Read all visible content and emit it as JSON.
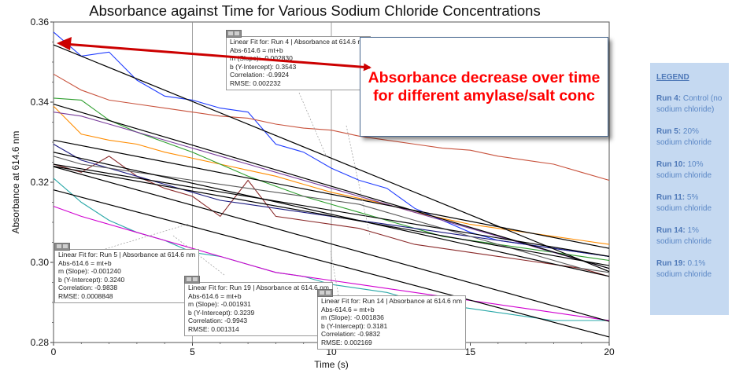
{
  "chart_data": {
    "type": "line",
    "title": "Absorbance against Time for Various Sodium Chloride Concentrations",
    "xlabel": "Time (s)",
    "ylabel": "Absorbance at 614.6 nm",
    "xlim": [
      0,
      20
    ],
    "ylim": [
      0.28,
      0.36
    ],
    "x_ticks": [
      "0",
      "5",
      "10",
      "15",
      "20"
    ],
    "y_ticks": [
      "0.28",
      "0.30",
      "0.32",
      "0.34",
      "0.36"
    ],
    "grid": "vertical lines at x = 5 and x = 10",
    "series": [
      {
        "color": "#1f3cff",
        "x": [
          0,
          1,
          2,
          3,
          4,
          5,
          6,
          7,
          8,
          9,
          10,
          11,
          12,
          13,
          14,
          15,
          16,
          17,
          18,
          19,
          20
        ],
        "values": [
          0.3575,
          0.3515,
          0.3525,
          0.3455,
          0.3415,
          0.3405,
          0.3385,
          0.3375,
          0.3295,
          0.3275,
          0.3235,
          0.3205,
          0.3185,
          0.3135,
          0.3105,
          0.3075,
          0.3055,
          0.3045,
          0.3035,
          0.3025,
          0.3015
        ]
      },
      {
        "color": "#c8523c",
        "x": [
          0,
          1,
          2,
          3,
          4,
          5,
          6,
          7,
          8,
          9,
          10,
          11,
          12,
          13,
          14,
          15,
          16,
          17,
          18,
          19,
          20
        ],
        "values": [
          0.347,
          0.343,
          0.3405,
          0.3395,
          0.3385,
          0.3375,
          0.3365,
          0.336,
          0.3345,
          0.3335,
          0.333,
          0.3315,
          0.3305,
          0.3295,
          0.3285,
          0.328,
          0.3265,
          0.3255,
          0.3245,
          0.3225,
          0.3205
        ]
      },
      {
        "color": "#ff8c00",
        "x": [
          0,
          1,
          2,
          3,
          4,
          5,
          6,
          7,
          8,
          9,
          10,
          11,
          12,
          13,
          14,
          15,
          16,
          17,
          18,
          19,
          20
        ],
        "values": [
          0.339,
          0.332,
          0.3305,
          0.3295,
          0.3275,
          0.326,
          0.3245,
          0.323,
          0.3215,
          0.3195,
          0.3175,
          0.316,
          0.3145,
          0.3125,
          0.311,
          0.3095,
          0.3085,
          0.3075,
          0.3065,
          0.3055,
          0.3045
        ]
      },
      {
        "color": "#2e9e2e",
        "x": [
          0,
          1,
          2,
          3,
          4,
          5,
          6,
          7,
          8,
          9,
          10,
          11,
          12,
          13,
          14,
          15,
          16,
          17,
          18,
          19,
          20
        ],
        "values": [
          0.341,
          0.3405,
          0.3355,
          0.3325,
          0.33,
          0.3275,
          0.3245,
          0.3215,
          0.319,
          0.3165,
          0.3145,
          0.3125,
          0.3105,
          0.3085,
          0.3065,
          0.3055,
          0.3045,
          0.3035,
          0.3025,
          0.3015,
          0.3005
        ]
      },
      {
        "color": "#8a2a2a",
        "x": [
          0,
          1,
          2,
          3,
          4,
          5,
          6,
          7,
          8,
          9,
          10,
          11,
          12,
          13,
          14,
          15,
          16,
          17,
          18,
          19,
          20
        ],
        "values": [
          0.3245,
          0.3225,
          0.3265,
          0.3215,
          0.3185,
          0.3165,
          0.3115,
          0.3205,
          0.3115,
          0.3105,
          0.3095,
          0.3085,
          0.3065,
          0.3045,
          0.3035,
          0.3025,
          0.3015,
          0.3005,
          0.2995,
          0.2985,
          0.2965
        ]
      },
      {
        "color": "#2aa8a8",
        "x": [
          0,
          1,
          2,
          3,
          4,
          5,
          6,
          7,
          8,
          9,
          10,
          11,
          12,
          13,
          14,
          15,
          16,
          17,
          18,
          19,
          20
        ],
        "values": [
          0.321,
          0.315,
          0.3105,
          0.3075,
          0.3055,
          0.3025,
          0.3015,
          0.2995,
          0.2975,
          0.2965,
          0.2945,
          0.2935,
          0.2925,
          0.2905,
          0.2895,
          0.2885,
          0.2875,
          0.2865,
          0.2855,
          0.2855,
          0.2855
        ]
      },
      {
        "color": "#d000d0",
        "x": [
          0,
          1,
          2,
          3,
          4,
          5,
          6,
          7,
          8,
          9,
          10,
          11,
          12,
          13,
          14,
          15,
          16,
          17,
          18,
          19,
          20
        ],
        "values": [
          0.314,
          0.3115,
          0.3095,
          0.3075,
          0.3055,
          0.3035,
          0.3015,
          0.2995,
          0.2975,
          0.2965,
          0.2955,
          0.2945,
          0.2935,
          0.2925,
          0.2915,
          0.2905,
          0.2895,
          0.2885,
          0.2875,
          0.2865,
          0.2855
        ]
      },
      {
        "color": "#7b3f9e",
        "x": [
          0,
          1,
          2,
          3,
          4,
          5,
          6,
          7,
          8,
          9,
          10,
          11,
          12,
          13,
          14,
          15,
          16,
          17,
          18,
          19,
          20
        ],
        "values": [
          0.3375,
          0.3365,
          0.3345,
          0.3325,
          0.3305,
          0.3285,
          0.3265,
          0.3245,
          0.3225,
          0.3205,
          0.3185,
          0.3165,
          0.3145,
          0.3125,
          0.3105,
          0.3085,
          0.3065,
          0.3045,
          0.3025,
          0.3005,
          0.2985
        ]
      },
      {
        "color": "#1a1a80",
        "x": [
          0,
          1,
          2,
          3,
          4,
          5,
          6,
          7,
          8,
          9,
          10,
          11,
          12,
          13,
          14,
          15,
          16,
          17,
          18,
          19,
          20
        ],
        "values": [
          0.3295,
          0.3255,
          0.3235,
          0.3215,
          0.3195,
          0.3175,
          0.3155,
          0.3145,
          0.3135,
          0.3125,
          0.3115,
          0.3105,
          0.3095,
          0.3085,
          0.3075,
          0.3065,
          0.3055,
          0.3045,
          0.3035,
          0.3025,
          0.3015
        ]
      },
      {
        "color": "#5a5a5a",
        "x": [
          0,
          1,
          2,
          3,
          4,
          5,
          6,
          7,
          8,
          9,
          10,
          11,
          12,
          13,
          14,
          15,
          16,
          17,
          18,
          19,
          20
        ],
        "values": [
          0.3265,
          0.3245,
          0.3235,
          0.3225,
          0.3215,
          0.3205,
          0.3195,
          0.3185,
          0.3175,
          0.3165,
          0.3155,
          0.3145,
          0.3125,
          0.3105,
          0.3085,
          0.3065,
          0.3045,
          0.3025,
          0.3005,
          0.2985,
          0.2975
        ]
      }
    ],
    "fit_lines": [
      {
        "label": "Run 4 fit",
        "slope": -0.00283,
        "intercept": 0.3543
      },
      {
        "label": "Run 5 fit",
        "slope": -0.00124,
        "intercept": 0.324
      },
      {
        "label": "Run 19 fit",
        "slope": -0.001931,
        "intercept": 0.3239
      },
      {
        "label": "Run 14 fit",
        "slope": -0.001836,
        "intercept": 0.3181
      },
      {
        "label": "fit",
        "slope": -0.00205,
        "intercept": 0.3395
      },
      {
        "label": "fit",
        "slope": -0.00135,
        "intercept": 0.3305
      },
      {
        "label": "fit",
        "slope": -0.00115,
        "intercept": 0.3245
      },
      {
        "label": "fit",
        "slope": -0.00155,
        "intercept": 0.3275
      }
    ],
    "fit_boxes": [
      {
        "header": "Linear Fit for: Run 4 | Absorbance at 614.6 nm",
        "lines": [
          "Abs-614.6 = mt+b",
          "m (Slope): -0.002830",
          "b (Y-Intercept): 0.3543",
          "Correlation: -0.9924",
          "RMSE: 0.002232"
        ]
      },
      {
        "header": "Linear Fit for: Run 5 | Absorbance at 614.6 nm",
        "lines": [
          "Abs-614.6 = mt+b",
          "m (Slope): -0.001240",
          "b (Y-Intercept): 0.3240",
          "Correlation: -0.9838",
          "RMSE: 0.0008848"
        ]
      },
      {
        "header": "Linear Fit for: Run 19 | Absorbance at 614.6 nm",
        "lines": [
          "Abs-614.6 = mt+b",
          "m (Slope): -0.001931",
          "b (Y-Intercept): 0.3239",
          "Correlation: -0.9943",
          "RMSE: 0.001314"
        ]
      },
      {
        "header": "Linear Fit for: Run 14 | Absorbance at 614.6 nm",
        "lines": [
          "Abs-614.6 = mt+b",
          "m (Slope): -0.001836",
          "b (Y-Intercept): 0.3181",
          "Correlation: -0.9832",
          "RMSE: 0.002169"
        ]
      }
    ],
    "annotation": "Absorbance decrease over time for different amylase/salt conc",
    "annotation_color": "#ff0000",
    "arrow_color": "#cc0000",
    "legend_placement": "right, outside plot"
  },
  "legend": {
    "heading": "LEGEND",
    "items": [
      {
        "run": "Run 4:",
        "desc": "Control (no sodium chloride)"
      },
      {
        "run": "Run 5:",
        "desc": "20% sodium chloride"
      },
      {
        "run": "Run 10:",
        "desc": "10% sodium chloride"
      },
      {
        "run": "Run 11:",
        "desc": "5% sodium chloride"
      },
      {
        "run": "Run 14:",
        "desc": "1% sodium chloride"
      },
      {
        "run": "Run 19:",
        "desc": "0.1% sodium chloride"
      }
    ],
    "background": "#c5d9f1",
    "text_color": "#5b87c5"
  }
}
